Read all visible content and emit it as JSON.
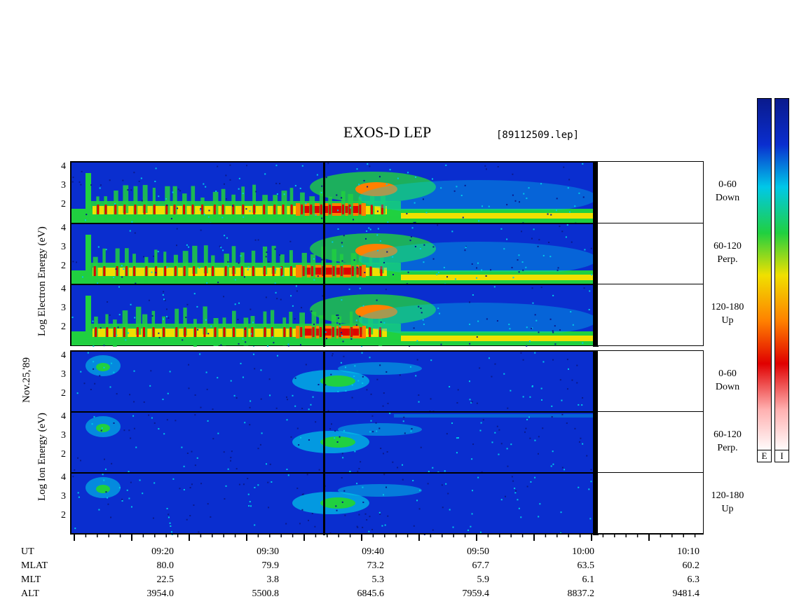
{
  "title": "EXOS-D LEP",
  "filename": "[89112509.lep]",
  "date_label": "Nov.25,'89",
  "electron_axis_label": "Log  Electron  Energy (eV)",
  "ion_axis_label": "Log  Ion  Energy (eV)",
  "pitch_labels": [
    {
      "range": "0-60",
      "dir": "Down"
    },
    {
      "range": "60-120",
      "dir": "Perp."
    },
    {
      "range": "120-180",
      "dir": "Up"
    }
  ],
  "y_ticks": [
    "4",
    "3",
    "2"
  ],
  "ephemeris": {
    "row_labels": [
      "UT",
      "MLAT",
      "MLT",
      "ALT"
    ],
    "columns": [
      {
        "UT": "09:20",
        "MLAT": "80.0",
        "MLT": "22.5",
        "ALT": "3954.0"
      },
      {
        "UT": "09:30",
        "MLAT": "79.9",
        "MLT": "3.8",
        "ALT": "5500.8"
      },
      {
        "UT": "09:40",
        "MLAT": "73.2",
        "MLT": "5.3",
        "ALT": "6845.6"
      },
      {
        "UT": "09:50",
        "MLAT": "67.7",
        "MLT": "5.9",
        "ALT": "7959.4"
      },
      {
        "UT": "10:00",
        "MLAT": "63.5",
        "MLT": "6.1",
        "ALT": "8837.2"
      },
      {
        "UT": "10:10",
        "MLAT": "60.2",
        "MLT": "6.3",
        "ALT": "9481.4"
      }
    ]
  },
  "colorbar_labels": [
    "E",
    "I"
  ],
  "chart_data": {
    "type": "heatmap",
    "title": "EXOS-D LEP",
    "xlabel": "UT",
    "ylabel_electron": "Log Electron Energy (eV)",
    "ylabel_ion": "Log Ion Energy (eV)",
    "x_ticks": [
      "09:20",
      "09:30",
      "09:40",
      "09:50",
      "10:00",
      "10:10"
    ],
    "y_ticks": [
      2,
      3,
      4
    ],
    "panels": [
      "Electron 0-60 Down",
      "Electron 60-120 Perp.",
      "Electron 120-180 Up",
      "Ion 0-60 Down",
      "Ion 60-120 Perp.",
      "Ion 120-180 Up"
    ],
    "colorscale": [
      "#0a1a8c",
      "#0a2ecf",
      "#00c8e8",
      "#20d040",
      "#f0e000",
      "#ff8000",
      "#e00000",
      "#ffb0b0",
      "#ffffff"
    ]
  }
}
